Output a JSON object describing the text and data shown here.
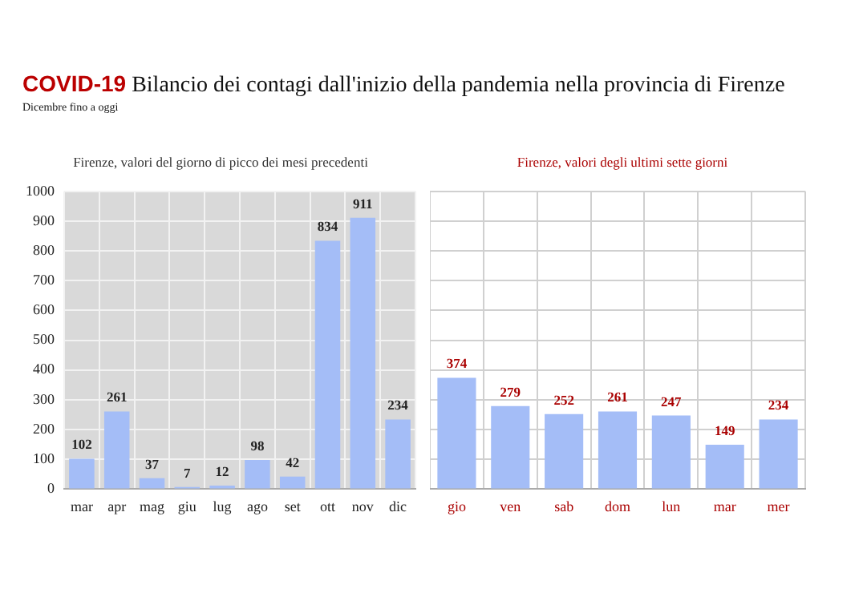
{
  "chart_data": [
    {
      "type": "bar",
      "title": "COVID-19 Bilancio dei contagi dall'inizio della pandemia nella provincia di Firenze",
      "subtitle": "Dicembre fino a oggi",
      "annotations": [
        "Firenze, valori del giorno di picco dei mesi precedenti"
      ],
      "categories": [
        "mar",
        "apr",
        "mag",
        "giu",
        "lug",
        "ago",
        "set",
        "ott",
        "nov",
        "dic"
      ],
      "values": [
        102,
        261,
        37,
        7,
        12,
        98,
        42,
        834,
        911,
        234
      ],
      "color": "#a4bdf7",
      "ylim": [
        0,
        1000
      ],
      "yticks": [
        0,
        100,
        200,
        300,
        400,
        500,
        600,
        700,
        800,
        900,
        1000
      ],
      "grid": true,
      "data_labels": true
    },
    {
      "type": "bar",
      "title": "Firenze, valori degli ultimi sette giorni",
      "categories": [
        "gio",
        "ven",
        "sab",
        "dom",
        "lun",
        "mar",
        "mer"
      ],
      "values": [
        374,
        279,
        252,
        261,
        247,
        149,
        234
      ],
      "color": "#a4bdf7",
      "ylim": [
        0,
        1000
      ],
      "yticks": [
        {
          "value": 0,
          "label": null
        },
        {
          "value": 100,
          "label": null
        },
        {
          "value": 200,
          "label": null
        },
        {
          "value": 300,
          "label": null
        },
        {
          "value": 400,
          "label": null
        },
        {
          "value": 500,
          "label": null
        },
        {
          "value": 600,
          "label": null
        },
        {
          "value": 700,
          "label": null
        },
        {
          "value": 800,
          "label": null
        },
        {
          "value": 900,
          "label": null
        },
        {
          "value": 1000,
          "label": null
        }
      ],
      "grid": true,
      "tick_labels": "x",
      "data_labels": true
    }
  ]
}
